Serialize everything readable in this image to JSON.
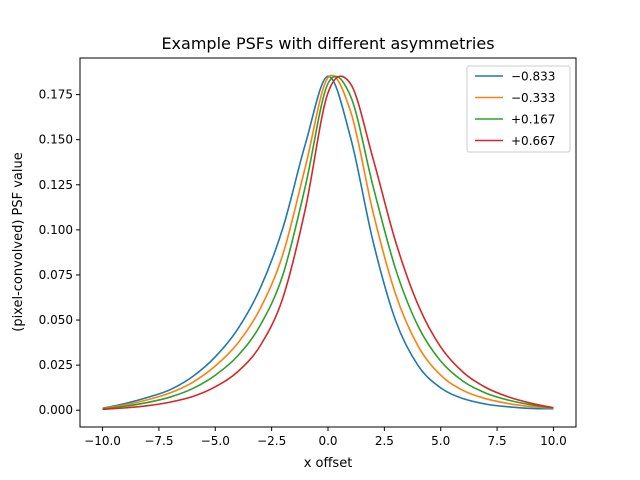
{
  "chart_data": {
    "type": "line",
    "title": "Example PSFs with different asymmetries",
    "xlabel": "x offset",
    "ylabel": "(pixel-convolved) PSF value",
    "xlim": [
      -11.0,
      11.0
    ],
    "ylim": [
      -0.0093,
      0.1953
    ],
    "xticks": [
      -10.0,
      -7.5,
      -5.0,
      -2.5,
      0.0,
      2.5,
      5.0,
      7.5,
      10.0
    ],
    "xtick_labels": [
      "−10.0",
      "−7.5",
      "−5.0",
      "−2.5",
      "0.0",
      "2.5",
      "5.0",
      "7.5",
      "10.0"
    ],
    "yticks": [
      0.0,
      0.025,
      0.05,
      0.075,
      0.1,
      0.125,
      0.15,
      0.175
    ],
    "ytick_labels": [
      "0.000",
      "0.025",
      "0.050",
      "0.075",
      "0.100",
      "0.125",
      "0.150",
      "0.175"
    ],
    "grid": false,
    "legend_position": "top-right",
    "x": [
      -10,
      -9,
      -8,
      -7,
      -6,
      -5,
      -4,
      -3,
      -2,
      -1,
      0,
      1,
      2,
      3,
      4,
      5,
      6,
      7,
      8,
      9,
      10
    ],
    "series": [
      {
        "name": "−0.833",
        "color": "#1f77b4",
        "values": [
          0.0011,
          0.0037,
          0.0071,
          0.0114,
          0.0187,
          0.0296,
          0.0451,
          0.0678,
          0.1011,
          0.1478,
          0.1852,
          0.1512,
          0.0935,
          0.0497,
          0.0247,
          0.0124,
          0.0064,
          0.0034,
          0.0019,
          0.001,
          0.0008
        ]
      },
      {
        "name": "−0.333",
        "color": "#ff7f0e",
        "values": [
          0.001,
          0.003,
          0.0058,
          0.0096,
          0.0155,
          0.0245,
          0.0372,
          0.0565,
          0.0865,
          0.1351,
          0.1844,
          0.1658,
          0.1097,
          0.0643,
          0.0355,
          0.0194,
          0.0109,
          0.0064,
          0.0037,
          0.002,
          0.0011
        ]
      },
      {
        "name": "+0.167",
        "color": "#2ca02c",
        "values": [
          0.0008,
          0.0022,
          0.0043,
          0.0073,
          0.012,
          0.0194,
          0.0302,
          0.0472,
          0.0751,
          0.1244,
          0.1812,
          0.1741,
          0.1241,
          0.0782,
          0.0465,
          0.0272,
          0.016,
          0.0095,
          0.0056,
          0.003,
          0.0012
        ]
      },
      {
        "name": "+0.667",
        "color": "#d62728",
        "values": [
          0.0005,
          0.0013,
          0.0025,
          0.0045,
          0.0076,
          0.013,
          0.0214,
          0.0359,
          0.0624,
          0.1119,
          0.176,
          0.181,
          0.1394,
          0.0934,
          0.0583,
          0.035,
          0.021,
          0.0126,
          0.0074,
          0.0039,
          0.0014
        ]
      }
    ]
  }
}
